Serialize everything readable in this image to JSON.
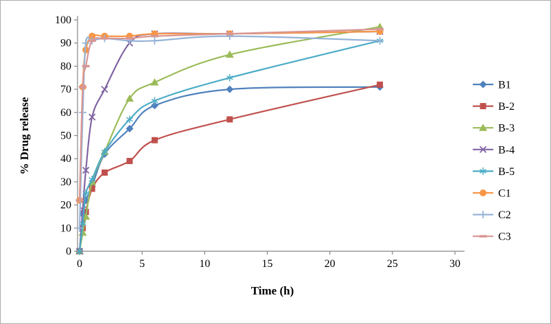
{
  "figure": {
    "background": "#ffffff",
    "border_color": "#ababab",
    "axis_color": "#868686"
  },
  "chart_data": {
    "type": "line",
    "title": "",
    "xlabel": "Time (h)",
    "ylabel": "% Drug release",
    "xlim": [
      0,
      30
    ],
    "ylim": [
      0,
      100
    ],
    "xticks": [
      0,
      5,
      10,
      15,
      20,
      25,
      30
    ],
    "yticks": [
      0,
      10,
      20,
      30,
      40,
      50,
      60,
      70,
      80,
      90,
      100
    ],
    "grid": false,
    "legend_position": "right",
    "x": [
      0,
      0.25,
      0.5,
      1,
      2,
      4,
      6,
      12,
      24
    ],
    "series": [
      {
        "name": "B1",
        "color": "#4F81BD",
        "marker": "diamond",
        "values": [
          0,
          16,
          22,
          28,
          42,
          53,
          63,
          70,
          71
        ]
      },
      {
        "name": "B-2",
        "color": "#C0504D",
        "marker": "square",
        "values": [
          0,
          10,
          17,
          27,
          34,
          39,
          48,
          57,
          72
        ]
      },
      {
        "name": "B-3",
        "color": "#9BBB59",
        "marker": "triangle",
        "values": [
          0,
          8,
          15,
          30,
          43,
          66,
          73,
          85,
          97
        ]
      },
      {
        "name": "B-4",
        "color": "#8064A2",
        "marker": "x",
        "values": [
          0,
          18,
          35,
          58,
          70,
          90,
          94,
          94,
          95
        ]
      },
      {
        "name": "B-5",
        "color": "#4BACC6",
        "marker": "asterisk",
        "values": [
          0,
          12,
          25,
          31,
          43,
          57,
          65,
          75,
          91
        ]
      },
      {
        "name": "C1",
        "color": "#F79646",
        "marker": "circle",
        "values": [
          22,
          71,
          87,
          93,
          93,
          93,
          94,
          94,
          95
        ]
      },
      {
        "name": "C2",
        "color": "#95B3D7",
        "marker": "plus",
        "values": [
          10,
          60,
          90,
          91,
          92,
          91,
          91,
          93,
          91
        ]
      },
      {
        "name": "C3",
        "color": "#D99694",
        "marker": "dash",
        "values": [
          22,
          71,
          80,
          91,
          92,
          92,
          93,
          94,
          96
        ]
      }
    ]
  }
}
